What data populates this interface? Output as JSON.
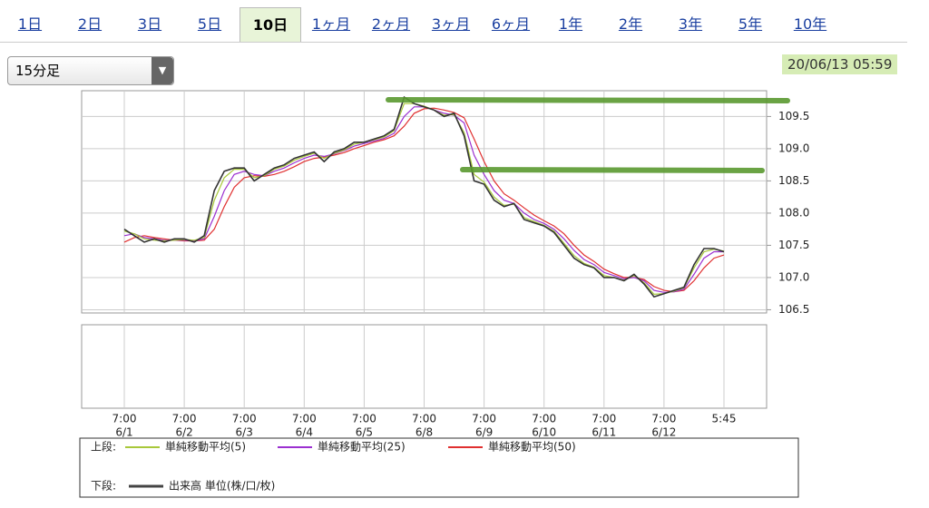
{
  "tabs": {
    "items": [
      "1日",
      "2日",
      "3日",
      "5日",
      "10日",
      "1ヶ月",
      "2ヶ月",
      "3ヶ月",
      "6ヶ月",
      "1年",
      "2年",
      "3年",
      "5年",
      "10年"
    ],
    "active": 4
  },
  "dropdown": {
    "label": "15分足"
  },
  "timestamp": "20/06/13 05:59",
  "chart_data": {
    "type": "line",
    "categories": [
      "6/1",
      null,
      null,
      null,
      null,
      null,
      "6/2",
      null,
      null,
      null,
      null,
      null,
      "6/3",
      null,
      null,
      null,
      null,
      null,
      "6/4",
      null,
      null,
      null,
      null,
      null,
      "6/5",
      null,
      null,
      null,
      null,
      null,
      "6/8",
      null,
      null,
      null,
      null,
      null,
      "6/9",
      null,
      null,
      null,
      null,
      null,
      "6/10",
      null,
      null,
      null,
      null,
      null,
      "6/11",
      null,
      null,
      null,
      null,
      null,
      "6/12",
      null,
      null,
      null,
      null,
      null,
      null
    ],
    "category_times": [
      "7:00",
      null,
      null,
      null,
      null,
      null,
      "7:00",
      null,
      null,
      null,
      null,
      null,
      "7:00",
      null,
      null,
      null,
      null,
      null,
      "7:00",
      null,
      null,
      null,
      null,
      null,
      "7:00",
      null,
      null,
      null,
      null,
      null,
      "7:00",
      null,
      null,
      null,
      null,
      null,
      "7:00",
      null,
      null,
      null,
      null,
      null,
      "7:00",
      null,
      null,
      null,
      null,
      null,
      "7:00",
      null,
      null,
      null,
      null,
      null,
      "7:00",
      null,
      null,
      null,
      null,
      null,
      "5:45"
    ],
    "values": [
      107.75,
      107.65,
      107.55,
      107.6,
      107.55,
      107.6,
      107.6,
      107.55,
      107.65,
      108.35,
      108.65,
      108.7,
      108.7,
      108.5,
      108.6,
      108.7,
      108.75,
      108.85,
      108.9,
      108.95,
      108.8,
      108.95,
      109.0,
      109.1,
      109.1,
      109.15,
      109.2,
      109.3,
      109.8,
      109.7,
      109.65,
      109.6,
      109.5,
      109.55,
      109.2,
      108.5,
      108.45,
      108.2,
      108.1,
      108.15,
      107.9,
      107.85,
      107.8,
      107.7,
      107.5,
      107.3,
      107.2,
      107.15,
      107.0,
      107.0,
      106.95,
      107.05,
      106.9,
      106.7,
      106.75,
      106.8,
      106.85,
      107.2,
      107.45,
      107.45,
      107.4
    ],
    "color": "#333333",
    "series": [
      {
        "name": "単純移動平均(5)",
        "color": "#a8c83a",
        "values": [
          107.72,
          107.68,
          107.6,
          107.58,
          107.57,
          107.58,
          107.59,
          107.58,
          107.62,
          108.2,
          108.55,
          108.68,
          108.68,
          108.55,
          108.58,
          108.68,
          108.73,
          108.82,
          108.88,
          108.93,
          108.85,
          108.93,
          108.98,
          109.07,
          109.1,
          109.14,
          109.18,
          109.28,
          109.7,
          109.7,
          109.66,
          109.6,
          109.52,
          109.53,
          109.25,
          108.6,
          108.48,
          108.25,
          108.12,
          108.14,
          107.93,
          107.87,
          107.81,
          107.72,
          107.53,
          107.34,
          107.22,
          107.16,
          107.03,
          107.0,
          106.96,
          107.03,
          106.92,
          106.74,
          106.75,
          106.79,
          106.84,
          107.15,
          107.4,
          107.44,
          107.41
        ]
      },
      {
        "name": "単純移動平均(25)",
        "color": "#9b30d0",
        "values": [
          107.65,
          107.68,
          107.62,
          107.6,
          107.58,
          107.58,
          107.58,
          107.57,
          107.6,
          107.95,
          108.35,
          108.6,
          108.65,
          108.6,
          108.58,
          108.65,
          108.7,
          108.78,
          108.85,
          108.9,
          108.88,
          108.92,
          108.97,
          109.04,
          109.08,
          109.12,
          109.16,
          109.24,
          109.5,
          109.65,
          109.65,
          109.6,
          109.55,
          109.52,
          109.4,
          108.9,
          108.6,
          108.35,
          108.2,
          108.15,
          108.0,
          107.9,
          107.84,
          107.75,
          107.6,
          107.42,
          107.28,
          107.2,
          107.08,
          107.03,
          106.98,
          107.0,
          106.95,
          106.8,
          106.77,
          106.78,
          106.82,
          107.05,
          107.3,
          107.4,
          107.4
        ]
      },
      {
        "name": "単純移動平均(50)",
        "color": "#e03030",
        "values": [
          107.55,
          107.62,
          107.65,
          107.62,
          107.6,
          107.58,
          107.57,
          107.57,
          107.58,
          107.75,
          108.1,
          108.4,
          108.55,
          108.58,
          108.57,
          108.6,
          108.65,
          108.72,
          108.8,
          108.85,
          108.87,
          108.9,
          108.94,
          109.0,
          109.05,
          109.1,
          109.14,
          109.2,
          109.35,
          109.55,
          109.62,
          109.63,
          109.6,
          109.56,
          109.48,
          109.15,
          108.8,
          108.5,
          108.3,
          108.2,
          108.08,
          107.97,
          107.88,
          107.8,
          107.68,
          107.5,
          107.35,
          107.25,
          107.13,
          107.06,
          107.0,
          107.0,
          106.97,
          106.86,
          106.8,
          106.78,
          106.8,
          106.95,
          107.15,
          107.3,
          107.35
        ]
      }
    ],
    "ylim": [
      106.45,
      109.9
    ],
    "yticks": [
      106.5,
      {
        "value": 107,
        "label": "107.0"
      },
      107.5,
      {
        "value": 108,
        "label": "108.0"
      },
      108.5,
      {
        "value": 109,
        "label": "109.0"
      },
      109.5
    ],
    "grid": true,
    "upper_label": "上段:",
    "lower_label": "下段:",
    "volume_label": "出来高 単位(株/口/枚)"
  }
}
